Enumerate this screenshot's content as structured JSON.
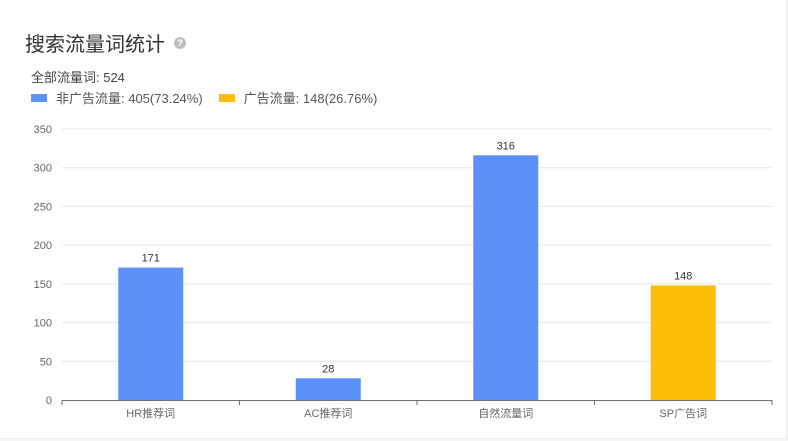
{
  "header": {
    "title": "搜索流量词统计",
    "help_icon": "question-circle-icon"
  },
  "summary": {
    "total_label": "全部流量词: 524"
  },
  "legend": [
    {
      "label": "非广告流量: 405(73.24%)",
      "color": "#5b91f9"
    },
    {
      "label": "广告流量: 148(26.76%)",
      "color": "#fdbf06"
    }
  ],
  "chart_data": {
    "type": "bar",
    "title": "搜索流量词统计",
    "categories": [
      "HR推荐词",
      "AC推荐词",
      "自然流量词",
      "SP广告词"
    ],
    "values": [
      171,
      28,
      316,
      148
    ],
    "colors": [
      "#5b91f9",
      "#5b91f9",
      "#5b91f9",
      "#fdbf06"
    ],
    "ylim": [
      0,
      350
    ],
    "yticks": [
      0,
      50,
      100,
      150,
      200,
      250,
      300,
      350
    ],
    "grid": true,
    "xlabel": "",
    "ylabel": ""
  }
}
